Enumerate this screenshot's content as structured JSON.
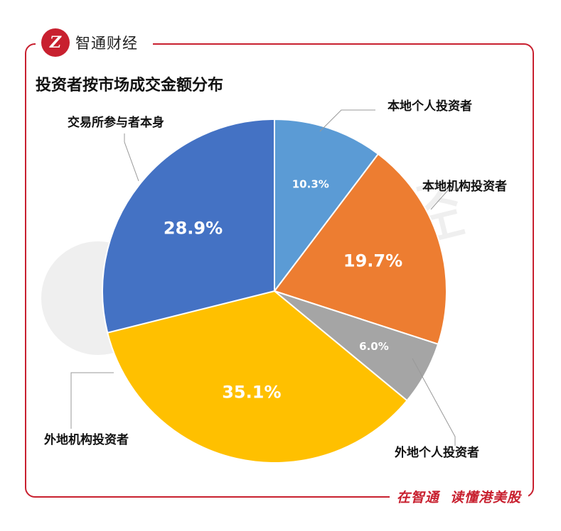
{
  "brand": {
    "logo_glyph": "Z",
    "name": "智通财经",
    "watermark": "智通财经"
  },
  "footer": {
    "left": "在智通",
    "right": "读懂港美股"
  },
  "chart_data": {
    "type": "pie",
    "title": "投资者按市场成交金额分布",
    "start_angle_deg": 0,
    "direction": "clockwise",
    "slices": [
      {
        "label": "本地个人投资者",
        "value": 10.3,
        "display": "10.3%",
        "color": "#5b9bd5"
      },
      {
        "label": "本地机构投资者",
        "value": 19.7,
        "display": "19.7%",
        "color": "#ed7d31"
      },
      {
        "label": "外地个人投资者",
        "value": 6.0,
        "display": "6.0%",
        "color": "#a5a5a5"
      },
      {
        "label": "外地机构投资者",
        "value": 35.1,
        "display": "35.1%",
        "color": "#ffc000"
      },
      {
        "label": "交易所参与者本身",
        "value": 28.9,
        "display": "28.9%",
        "color": "#4472c4"
      }
    ]
  }
}
